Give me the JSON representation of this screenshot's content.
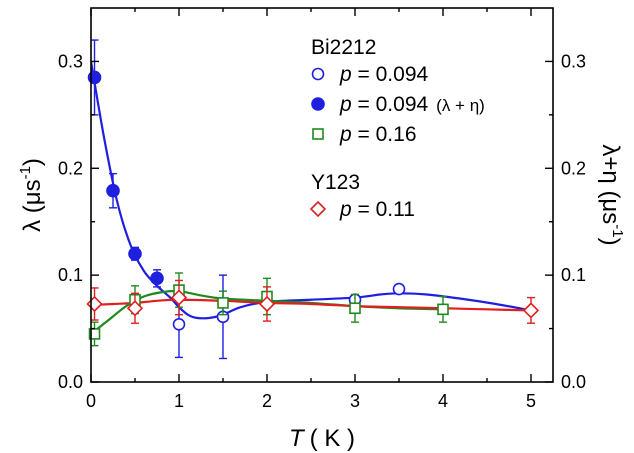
{
  "chart_data": {
    "type": "scatter",
    "xlabel_main": "T",
    "xlabel_unit": "( K )",
    "ylabel_left": "λ (μs-1)",
    "ylabel_left_parts": {
      "base": "λ (μs",
      "sup": "-1",
      "close": ")"
    },
    "ylabel_right": "λ+η (μs-1)",
    "ylabel_right_parts": {
      "base": "λ+η (μs",
      "sup": "-1",
      "close": ")"
    },
    "xlim": [
      0,
      5.25
    ],
    "ylim": [
      0,
      0.35
    ],
    "x_ticks": [
      0,
      1,
      2,
      3,
      4,
      5
    ],
    "x_tick_labels": [
      "0",
      "1",
      "2",
      "3",
      "4",
      "5"
    ],
    "y_ticks": [
      0.0,
      0.1,
      0.2,
      0.3
    ],
    "y_tick_labels": [
      "0.0",
      "0.1",
      "0.2",
      "0.3"
    ],
    "legend": {
      "placement": "top-right",
      "groups": [
        {
          "heading": "Bi2212",
          "entries": [
            {
              "series": 0,
              "p_label": "p",
              "text": " = 0.094",
              "extra": ""
            },
            {
              "series": 1,
              "p_label": "p",
              "text": " = 0.094",
              "extra": "(λ + η)"
            },
            {
              "series": 2,
              "p_label": "p",
              "text": " = 0.16",
              "extra": ""
            }
          ]
        },
        {
          "heading": "Y123",
          "entries": [
            {
              "series": 3,
              "p_label": "p",
              "text": " = 0.11",
              "extra": ""
            }
          ]
        }
      ]
    },
    "series": [
      {
        "marker": "circle-open",
        "color": "#1f1fe0",
        "x": [
          1.0,
          1.5,
          3.0,
          3.5
        ],
        "y": [
          0.054,
          0.061,
          0.077,
          0.087
        ],
        "err": [
          0.031,
          0.039,
          0.0,
          0.0
        ]
      },
      {
        "marker": "circle-filled",
        "color": "#1f1fe0",
        "x": [
          0.04,
          0.25,
          0.5,
          0.75
        ],
        "y": [
          0.285,
          0.179,
          0.12,
          0.097
        ],
        "err": [
          0.035,
          0.016,
          0.006,
          0.008
        ]
      },
      {
        "marker": "square-open",
        "color": "#1e8a1e",
        "x": [
          0.04,
          0.5,
          1.0,
          1.5,
          2.0,
          3.0,
          4.0
        ],
        "y": [
          0.045,
          0.077,
          0.086,
          0.074,
          0.08,
          0.069,
          0.068
        ],
        "err": [
          0.011,
          0.013,
          0.016,
          0.011,
          0.017,
          0.013,
          0.012
        ]
      },
      {
        "marker": "diamond-open",
        "color": "#e01f1f",
        "x": [
          0.04,
          0.5,
          1.0,
          2.0,
          5.0
        ],
        "y": [
          0.073,
          0.069,
          0.079,
          0.073,
          0.067
        ],
        "err": [
          0.015,
          0.014,
          0.016,
          0.016,
          0.012
        ]
      }
    ],
    "fits": [
      {
        "color": "#1f1fe0",
        "x": [
          0.0,
          0.15,
          0.3,
          0.45,
          0.6,
          0.75,
          0.9,
          1.0,
          1.1,
          1.2,
          1.35,
          1.5,
          1.7,
          2.0,
          2.5,
          3.0,
          3.3,
          3.5,
          3.8,
          4.2,
          4.6,
          5.0
        ],
        "y": [
          0.3,
          0.228,
          0.168,
          0.128,
          0.104,
          0.09,
          0.079,
          0.07,
          0.063,
          0.06,
          0.06,
          0.063,
          0.07,
          0.075,
          0.077,
          0.079,
          0.082,
          0.083,
          0.082,
          0.078,
          0.073,
          0.067
        ]
      },
      {
        "color": "#1e8a1e",
        "x": [
          0.0,
          0.2,
          0.4,
          0.6,
          0.8,
          1.0,
          1.25,
          1.5,
          2.0,
          2.5,
          3.0,
          3.5,
          4.0
        ],
        "y": [
          0.045,
          0.058,
          0.071,
          0.08,
          0.084,
          0.085,
          0.081,
          0.078,
          0.076,
          0.074,
          0.071,
          0.069,
          0.068
        ]
      },
      {
        "color": "#e01f1f",
        "x": [
          0.0,
          0.25,
          0.5,
          0.75,
          1.0,
          1.5,
          2.0,
          2.5,
          3.0,
          3.5,
          4.0,
          4.5,
          5.0
        ],
        "y": [
          0.072,
          0.073,
          0.074,
          0.076,
          0.077,
          0.076,
          0.074,
          0.073,
          0.071,
          0.07,
          0.069,
          0.068,
          0.067
        ]
      }
    ]
  }
}
